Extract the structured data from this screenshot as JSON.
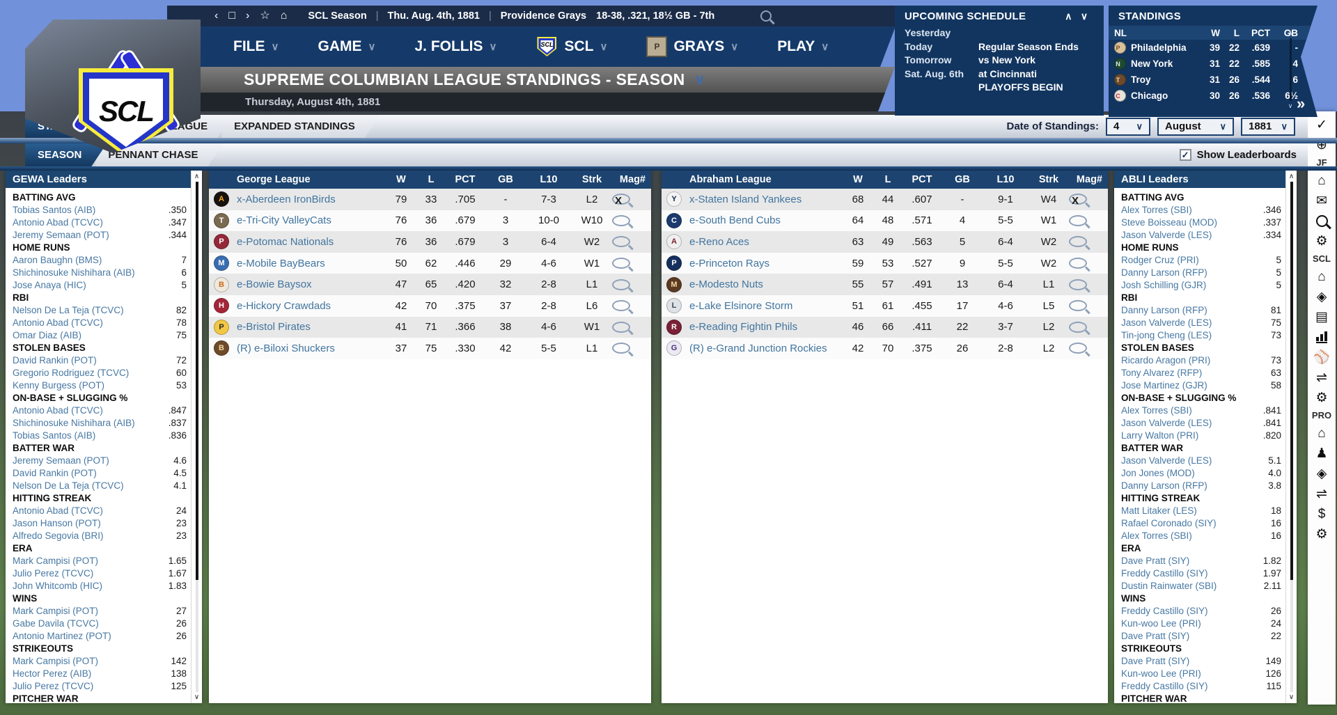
{
  "colors": {
    "navy_bar": "#153a69",
    "panel_navy": "#123560",
    "table_header_navy": "#1d4470",
    "link_blue": "#41759f",
    "tab_active": "#1c4f80",
    "row_stripe": "#e8e8e8",
    "field_green": "#5d7f4c",
    "accent_blue": "#3e6cb1"
  },
  "icons": {
    "back": "‹",
    "window": "□",
    "forward": "›",
    "star": "☆",
    "home": "⌂",
    "expand": "»",
    "chev_down": "∨",
    "chev_up": "∧",
    "check": "✓"
  },
  "topbar": {
    "app": "SCL Season",
    "sep": "|",
    "date": "Thu. Aug. 4th, 1881",
    "team": "Providence Grays",
    "record": "18-38, .321, 18½ GB - 7th"
  },
  "menus": [
    {
      "label": "FILE"
    },
    {
      "label": "GAME"
    },
    {
      "label": "J. FOLLIS"
    },
    {
      "label": "SCL",
      "logo": "scl",
      "logo_text": "SCL"
    },
    {
      "label": "GRAYS",
      "logo": "grays",
      "logo_text": "GRAYS"
    },
    {
      "label": "PLAY"
    }
  ],
  "title": {
    "heading": "SUPREME COLUMBIAN LEAGUE STANDINGS - SEASON",
    "subheading": "Thursday, August 4th, 1881"
  },
  "logo": {
    "text": "SCL"
  },
  "upcoming": {
    "title": "UPCOMING SCHEDULE",
    "rows": [
      {
        "label": "Yesterday",
        "value": ""
      },
      {
        "label": "Today",
        "value": "Regular Season Ends"
      },
      {
        "label": "Tomorrow",
        "value": "vs New York"
      },
      {
        "label": "Sat. Aug. 6th",
        "value": "at Cincinnati"
      },
      {
        "label": "",
        "value": "PLAYOFFS BEGIN"
      }
    ]
  },
  "mini_standings": {
    "title": "STANDINGS",
    "columns": [
      "NL",
      "W",
      "L",
      "PCT",
      "GB"
    ],
    "rows": [
      {
        "team": "Philadelphia",
        "w": "39",
        "l": "22",
        "pct": ".639",
        "gb": "-",
        "logo_bg": "#d8c29a",
        "logo_fg": "#7a4a1e",
        "initial": "P"
      },
      {
        "team": "New York",
        "w": "31",
        "l": "22",
        "pct": ".585",
        "gb": "4",
        "logo_bg": "#1e4a32",
        "logo_fg": "#dfe8e0",
        "initial": "N"
      },
      {
        "team": "Troy",
        "w": "31",
        "l": "26",
        "pct": ".544",
        "gb": "6",
        "logo_bg": "#6e4a2a",
        "logo_fg": "#e8d9b0",
        "initial": "T"
      },
      {
        "team": "Chicago",
        "w": "30",
        "l": "26",
        "pct": ".536",
        "gb": "6½",
        "logo_bg": "#e8e4da",
        "logo_fg": "#c5273a",
        "initial": "C"
      }
    ]
  },
  "tabs_primary": [
    {
      "label": "STANDINGS",
      "active": true
    },
    {
      "label": "BY SUBLEAGUE",
      "active": false
    },
    {
      "label": "EXPANDED STANDINGS",
      "active": false
    }
  ],
  "tabs_secondary": [
    {
      "label": "SEASON",
      "active": true
    },
    {
      "label": "PENNANT CHASE",
      "active": false
    }
  ],
  "date_of_standings": {
    "label": "Date of Standings:",
    "day": "4",
    "month": "August",
    "year": "1881"
  },
  "show_leaderboards": {
    "label": "Show Leaderboards",
    "checked": true
  },
  "leagues": [
    {
      "name": "George League",
      "columns": {
        "w": "W",
        "l": "L",
        "pct": "PCT",
        "gb": "GB",
        "l10": "L10",
        "strk": "Strk",
        "mag": "Mag#"
      },
      "rows": [
        {
          "name": "x-Aberdeen IronBirds",
          "w": "79",
          "l": "33",
          "pct": ".705",
          "gb": "-",
          "l10": "7-3",
          "strk": "L2",
          "mag": "X",
          "logo_bg": "#17130c",
          "logo_fg": "#f5a623",
          "initial": "A"
        },
        {
          "name": "e-Tri-City ValleyCats",
          "w": "76",
          "l": "36",
          "pct": ".679",
          "gb": "3",
          "l10": "10-0",
          "strk": "W10",
          "mag": "",
          "logo_bg": "#7a6a50",
          "logo_fg": "#ffffff",
          "initial": "T"
        },
        {
          "name": "e-Potomac Nationals",
          "w": "76",
          "l": "36",
          "pct": ".679",
          "gb": "3",
          "l10": "6-4",
          "strk": "W2",
          "mag": "",
          "logo_bg": "#932839",
          "logo_fg": "#ffffff",
          "initial": "P"
        },
        {
          "name": "e-Mobile BayBears",
          "w": "50",
          "l": "62",
          "pct": ".446",
          "gb": "29",
          "l10": "4-6",
          "strk": "W1",
          "mag": "",
          "logo_bg": "#3a6db0",
          "logo_fg": "#ffffff",
          "initial": "M"
        },
        {
          "name": "e-Bowie Baysox",
          "w": "47",
          "l": "65",
          "pct": ".420",
          "gb": "32",
          "l10": "2-8",
          "strk": "L1",
          "mag": "",
          "logo_bg": "#efe9dd",
          "logo_fg": "#c96a1e",
          "initial": "B"
        },
        {
          "name": "e-Hickory Crawdads",
          "w": "42",
          "l": "70",
          "pct": ".375",
          "gb": "37",
          "l10": "2-8",
          "strk": "L6",
          "mag": "",
          "logo_bg": "#a32638",
          "logo_fg": "#ffffff",
          "initial": "H"
        },
        {
          "name": "e-Bristol Pirates",
          "w": "41",
          "l": "71",
          "pct": ".366",
          "gb": "38",
          "l10": "4-6",
          "strk": "W1",
          "mag": "",
          "logo_bg": "#f2c744",
          "logo_fg": "#2b2b2b",
          "initial": "P"
        },
        {
          "name": "(R) e-Biloxi Shuckers",
          "w": "37",
          "l": "75",
          "pct": ".330",
          "gb": "42",
          "l10": "5-5",
          "strk": "L1",
          "mag": "",
          "logo_bg": "#6e4a2a",
          "logo_fg": "#f0d9a0",
          "initial": "B"
        }
      ]
    },
    {
      "name": "Abraham League",
      "columns": {
        "w": "W",
        "l": "L",
        "pct": "PCT",
        "gb": "GB",
        "l10": "L10",
        "strk": "Strk",
        "mag": "Mag#"
      },
      "rows": [
        {
          "name": "x-Staten Island Yankees",
          "w": "68",
          "l": "44",
          "pct": ".607",
          "gb": "-",
          "l10": "9-1",
          "strk": "W4",
          "mag": "X",
          "logo_bg": "#f4f4f4",
          "logo_fg": "#10264a",
          "initial": "Y"
        },
        {
          "name": "e-South Bend Cubs",
          "w": "64",
          "l": "48",
          "pct": ".571",
          "gb": "4",
          "l10": "5-5",
          "strk": "W1",
          "mag": "",
          "logo_bg": "#1c3a6e",
          "logo_fg": "#ffffff",
          "initial": "C"
        },
        {
          "name": "e-Reno Aces",
          "w": "63",
          "l": "49",
          "pct": ".563",
          "gb": "5",
          "l10": "6-4",
          "strk": "W2",
          "mag": "",
          "logo_bg": "#efefef",
          "logo_fg": "#7a1f2b",
          "initial": "A"
        },
        {
          "name": "e-Princeton Rays",
          "w": "59",
          "l": "53",
          "pct": ".527",
          "gb": "9",
          "l10": "5-5",
          "strk": "W2",
          "mag": "",
          "logo_bg": "#16305e",
          "logo_fg": "#ffffff",
          "initial": "P"
        },
        {
          "name": "e-Modesto Nuts",
          "w": "55",
          "l": "57",
          "pct": ".491",
          "gb": "13",
          "l10": "6-4",
          "strk": "L1",
          "mag": "",
          "logo_bg": "#5b3a21",
          "logo_fg": "#f3d9a4",
          "initial": "M"
        },
        {
          "name": "e-Lake Elsinore Storm",
          "w": "51",
          "l": "61",
          "pct": ".455",
          "gb": "17",
          "l10": "4-6",
          "strk": "L5",
          "mag": "",
          "logo_bg": "#dfe2e6",
          "logo_fg": "#3a4a58",
          "initial": "L"
        },
        {
          "name": "e-Reading Fightin Phils",
          "w": "46",
          "l": "66",
          "pct": ".411",
          "gb": "22",
          "l10": "3-7",
          "strk": "L2",
          "mag": "",
          "logo_bg": "#7a2037",
          "logo_fg": "#ffffff",
          "initial": "R"
        },
        {
          "name": "(R) e-Grand Junction Rockies",
          "w": "42",
          "l": "70",
          "pct": ".375",
          "gb": "26",
          "l10": "2-8",
          "strk": "L2",
          "mag": "",
          "logo_bg": "#ece9f2",
          "logo_fg": "#46307a",
          "initial": "G"
        }
      ]
    }
  ],
  "leader_panels": [
    {
      "title": "GEWA Leaders",
      "groups": [
        {
          "label": "BATTING AVG",
          "entries": [
            [
              "Tobias Santos (AIB)",
              ".350"
            ],
            [
              "Antonio Abad (TCVC)",
              ".347"
            ],
            [
              "Jeremy Semaan (POT)",
              ".344"
            ]
          ]
        },
        {
          "label": "HOME RUNS",
          "entries": [
            [
              "Aaron Baughn (BMS)",
              "7"
            ],
            [
              "Shichinosuke Nishihara (AIB)",
              "6"
            ],
            [
              "Jose Anaya (HIC)",
              "5"
            ]
          ]
        },
        {
          "label": "RBI",
          "entries": [
            [
              "Nelson De La Teja (TCVC)",
              "82"
            ],
            [
              "Antonio Abad (TCVC)",
              "78"
            ],
            [
              "Omar Diaz (AIB)",
              "75"
            ]
          ]
        },
        {
          "label": "STOLEN BASES",
          "entries": [
            [
              "David Rankin (POT)",
              "72"
            ],
            [
              "Gregorio Rodriguez (TCVC)",
              "60"
            ],
            [
              "Kenny Burgess (POT)",
              "53"
            ]
          ]
        },
        {
          "label": "ON-BASE + SLUGGING %",
          "entries": [
            [
              "Antonio Abad (TCVC)",
              ".847"
            ],
            [
              "Shichinosuke Nishihara (AIB)",
              ".837"
            ],
            [
              "Tobias Santos (AIB)",
              ".836"
            ]
          ]
        },
        {
          "label": "BATTER WAR",
          "entries": [
            [
              "Jeremy Semaan (POT)",
              "4.6"
            ],
            [
              "David Rankin (POT)",
              "4.5"
            ],
            [
              "Nelson De La Teja (TCVC)",
              "4.1"
            ]
          ]
        },
        {
          "label": "HITTING STREAK",
          "entries": [
            [
              "Antonio Abad (TCVC)",
              "24"
            ],
            [
              "Jason Hanson (POT)",
              "23"
            ],
            [
              "Alfredo Segovia (BRI)",
              "23"
            ]
          ]
        },
        {
          "label": "ERA",
          "entries": [
            [
              "Mark Campisi (POT)",
              "1.65"
            ],
            [
              "Julio Perez (TCVC)",
              "1.67"
            ],
            [
              "John Whitcomb (HIC)",
              "1.83"
            ]
          ]
        },
        {
          "label": "WINS",
          "entries": [
            [
              "Mark Campisi (POT)",
              "27"
            ],
            [
              "Gabe Davila (TCVC)",
              "26"
            ],
            [
              "Antonio Martinez (POT)",
              "26"
            ]
          ]
        },
        {
          "label": "STRIKEOUTS",
          "entries": [
            [
              "Mark Campisi (POT)",
              "142"
            ],
            [
              "Hector Perez (AIB)",
              "138"
            ],
            [
              "Julio Perez (TCVC)",
              "125"
            ]
          ]
        },
        {
          "label": "PITCHER WAR",
          "entries": []
        }
      ]
    },
    {
      "title": "ABLI Leaders",
      "groups": [
        {
          "label": "BATTING AVG",
          "entries": [
            [
              "Alex Torres (SBI)",
              ".346"
            ],
            [
              "Steve Boisseau (MOD)",
              ".337"
            ],
            [
              "Jason Valverde (LES)",
              ".334"
            ]
          ]
        },
        {
          "label": "HOME RUNS",
          "entries": [
            [
              "Rodger Cruz (PRI)",
              "5"
            ],
            [
              "Danny Larson (RFP)",
              "5"
            ],
            [
              "Josh Schilling (GJR)",
              "5"
            ]
          ]
        },
        {
          "label": "RBI",
          "entries": [
            [
              "Danny Larson (RFP)",
              "81"
            ],
            [
              "Jason Valverde (LES)",
              "75"
            ],
            [
              "Tin-jong Cheng (LES)",
              "73"
            ]
          ]
        },
        {
          "label": "STOLEN BASES",
          "entries": [
            [
              "Ricardo Aragon (PRI)",
              "73"
            ],
            [
              "Tony Alvarez (RFP)",
              "63"
            ],
            [
              "Jose Martinez (GJR)",
              "58"
            ]
          ]
        },
        {
          "label": "ON-BASE + SLUGGING %",
          "entries": [
            [
              "Alex Torres (SBI)",
              ".841"
            ],
            [
              "Jason Valverde (LES)",
              ".841"
            ],
            [
              "Larry Walton (PRI)",
              ".820"
            ]
          ]
        },
        {
          "label": "BATTER WAR",
          "entries": [
            [
              "Jason Valverde (LES)",
              "5.1"
            ],
            [
              "Jon Jones (MOD)",
              "4.0"
            ],
            [
              "Danny Larson (RFP)",
              "3.8"
            ]
          ]
        },
        {
          "label": "HITTING STREAK",
          "entries": [
            [
              "Matt Litaker (LES)",
              "18"
            ],
            [
              "Rafael Coronado (SIY)",
              "16"
            ],
            [
              "Alex Torres (SBI)",
              "16"
            ]
          ]
        },
        {
          "label": "ERA",
          "entries": [
            [
              "Dave Pratt (SIY)",
              "1.82"
            ],
            [
              "Freddy Castillo (SIY)",
              "1.97"
            ],
            [
              "Dustin Rainwater (SBI)",
              "2.11"
            ]
          ]
        },
        {
          "label": "WINS",
          "entries": [
            [
              "Freddy Castillo (SIY)",
              "26"
            ],
            [
              "Kun-woo Lee (PRI)",
              "24"
            ],
            [
              "Dave Pratt (SIY)",
              "22"
            ]
          ]
        },
        {
          "label": "STRIKEOUTS",
          "entries": [
            [
              "Dave Pratt (SIY)",
              "149"
            ],
            [
              "Kun-woo Lee (PRI)",
              "126"
            ],
            [
              "Freddy Castillo (SIY)",
              "115"
            ]
          ]
        },
        {
          "label": "PITCHER WAR",
          "entries": []
        }
      ]
    }
  ],
  "icon_strip": {
    "items": [
      {
        "kind": "icon",
        "name": "check-icon",
        "glyph": "✓"
      },
      {
        "kind": "icon",
        "name": "globe-icon",
        "glyph": "⊕"
      },
      {
        "kind": "label",
        "name": "user-initials-label",
        "text": "JF"
      },
      {
        "kind": "icon",
        "name": "home-icon",
        "glyph": "⌂"
      },
      {
        "kind": "icon",
        "name": "mail-icon",
        "glyph": "✉"
      },
      {
        "kind": "search",
        "name": "search-icon"
      },
      {
        "kind": "icon",
        "name": "gear-icon",
        "glyph": "⚙"
      },
      {
        "kind": "label",
        "name": "league-label",
        "text": "SCL"
      },
      {
        "kind": "icon",
        "name": "home-icon",
        "glyph": "⌂"
      },
      {
        "kind": "icon",
        "name": "scores-icon",
        "glyph": "◈"
      },
      {
        "kind": "icon",
        "name": "standings-icon",
        "glyph": "▤"
      },
      {
        "kind": "bars",
        "name": "stats-icon"
      },
      {
        "kind": "icon",
        "name": "baseball-icon",
        "glyph": "⚾"
      },
      {
        "kind": "icon",
        "name": "transactions-icon",
        "glyph": "⇌"
      },
      {
        "kind": "icon",
        "name": "gear-icon",
        "glyph": "⚙"
      },
      {
        "kind": "label",
        "name": "pro-label",
        "text": "PRO"
      },
      {
        "kind": "icon",
        "name": "home-icon",
        "glyph": "⌂"
      },
      {
        "kind": "icon",
        "name": "manager-icon",
        "glyph": "♟"
      },
      {
        "kind": "icon",
        "name": "scores-icon",
        "glyph": "◈"
      },
      {
        "kind": "icon",
        "name": "transactions-icon",
        "glyph": "⇌"
      },
      {
        "kind": "icon",
        "name": "finance-icon",
        "glyph": "$"
      },
      {
        "kind": "icon",
        "name": "gear-icon",
        "glyph": "⚙"
      }
    ]
  }
}
